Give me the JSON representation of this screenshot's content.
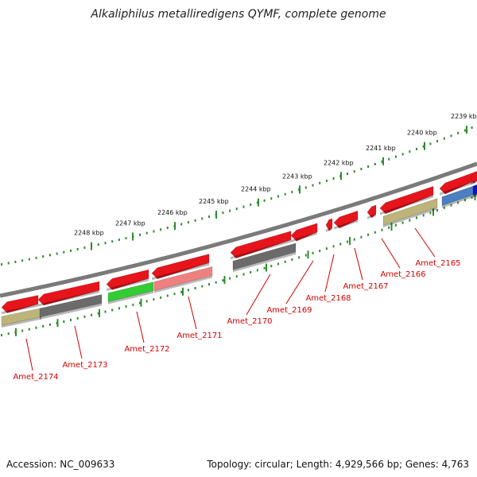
{
  "title": "Alkaliphilus metalliredigens QYMF, complete genome",
  "footer": {
    "accession": "Accession: NC_009633",
    "topology": "Topology: circular; Length: 4,929,566 bp; Genes: 4,763"
  },
  "kbp_labels": [
    "2239 kbp",
    "2240 kbp",
    "2241 kbp",
    "2242 kbp",
    "2243 kbp",
    "2244 kbp",
    "2245 kbp",
    "2246 kbp",
    "2247 kbp",
    "2248 kbp"
  ],
  "gene_labels": [
    "Amet_2165",
    "Amet_2166",
    "Amet_2167",
    "Amet_2168",
    "Amet_2169",
    "Amet_2170",
    "Amet_2171",
    "Amet_2172",
    "Amet_2173",
    "Amet_2174"
  ],
  "colors": {
    "red": "#e8141b",
    "gray": "#6b6b6b",
    "olive": "#bdb47a",
    "green": "#33cc33",
    "pink": "#f08080",
    "blue": "#4a7fc0",
    "darkblue": "#1010d0",
    "backbone": "#7a7a7a",
    "tick": "#2e8b2e",
    "label": "#d40000"
  }
}
